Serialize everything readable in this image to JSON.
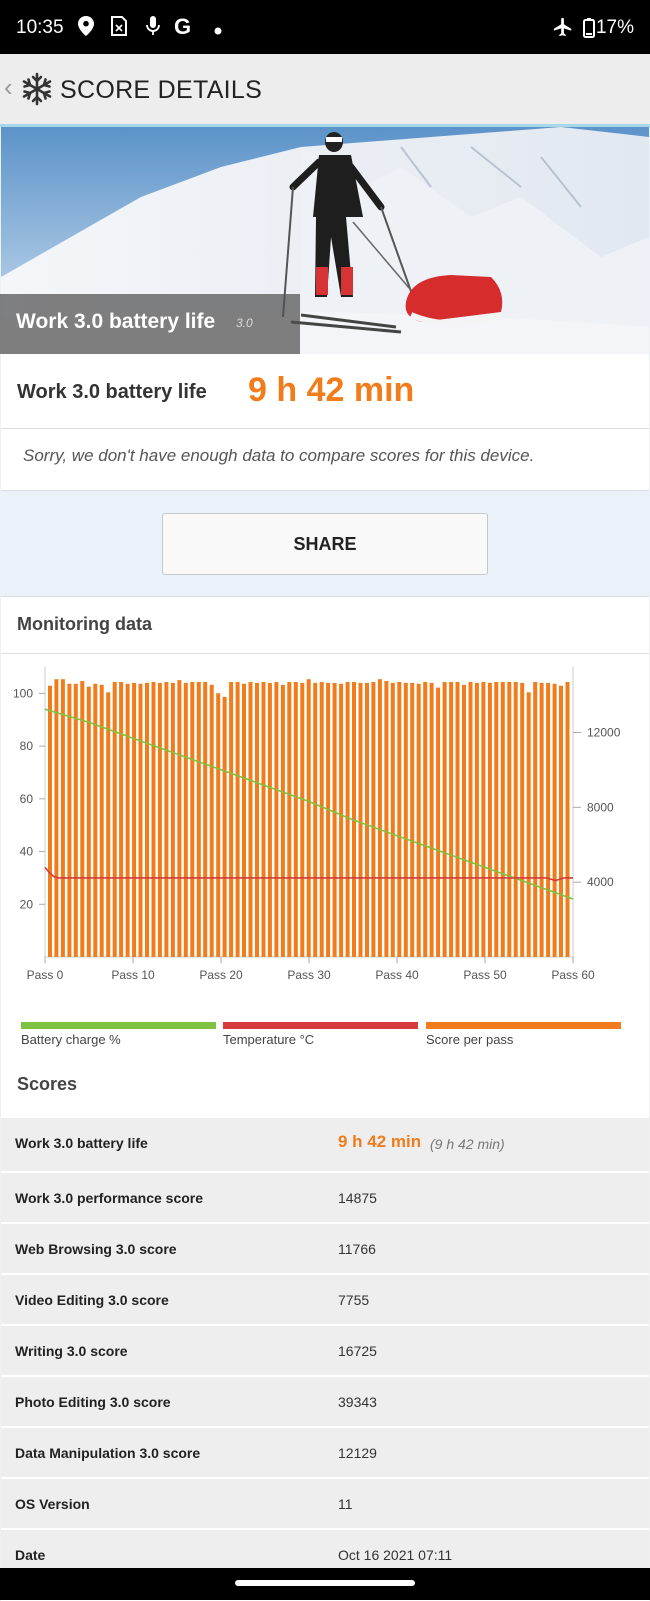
{
  "status_bar": {
    "time": "10:35",
    "battery_percent": "17%",
    "icons": [
      "location-icon",
      "sim-icon",
      "mic-icon",
      "google-icon",
      "dot-icon",
      "airplane-icon",
      "battery-icon"
    ]
  },
  "app_bar": {
    "title": "SCORE DETAILS",
    "back_icon": "back-chevron-icon",
    "logo_icon": "snowflake-icon"
  },
  "hero": {
    "caption": "Work 3.0 battery life",
    "version": "3.0"
  },
  "result": {
    "label": "Work 3.0 battery life",
    "value": "9 h 42 min",
    "message": "Sorry, we don't have enough data to compare scores for this device."
  },
  "share_label": "SHARE",
  "monitoring": {
    "title": "Monitoring data"
  },
  "chart_data": {
    "type": "bar",
    "title": "",
    "x_ticks": [
      "Pass 0",
      "Pass 10",
      "Pass 20",
      "Pass 30",
      "Pass 40",
      "Pass 50",
      "Pass 60"
    ],
    "left_axis": {
      "range": [
        0,
        110
      ],
      "ticks": [
        20,
        40,
        60,
        80,
        100
      ]
    },
    "right_axis": {
      "range": [
        0,
        15500
      ],
      "ticks": [
        4000,
        8000,
        12000
      ]
    },
    "grid": false,
    "legend_position": "bottom",
    "colors": {
      "battery": "#7dc242",
      "temperature": "#d63a3a",
      "score": "#f07c1b"
    },
    "series": [
      {
        "name": "Score per pass",
        "axis": "right",
        "kind": "bar",
        "values": [
          14500,
          14850,
          14850,
          14600,
          14600,
          14750,
          14450,
          14600,
          14550,
          14150,
          14700,
          14700,
          14600,
          14650,
          14600,
          14650,
          14700,
          14650,
          14700,
          14650,
          14800,
          14650,
          14700,
          14700,
          14700,
          14550,
          14100,
          13900,
          14700,
          14700,
          14600,
          14700,
          14650,
          14700,
          14650,
          14700,
          14550,
          14700,
          14700,
          14650,
          14850,
          14650,
          14700,
          14650,
          14650,
          14600,
          14700,
          14700,
          14650,
          14650,
          14700,
          14850,
          14750,
          14650,
          14700,
          14650,
          14650,
          14600,
          14700,
          14650,
          14400,
          14700,
          14700,
          14700,
          14550,
          14700,
          14650,
          14700,
          14650,
          14700,
          14700,
          14700,
          14700,
          14650,
          14150,
          14700,
          14650,
          14650,
          14600,
          14500,
          14700
        ]
      },
      {
        "name": "Battery charge %",
        "axis": "left",
        "kind": "line",
        "x": [
          0,
          5,
          10,
          15,
          20,
          25,
          30,
          35,
          40,
          45,
          50,
          55,
          60
        ],
        "values": [
          94,
          89,
          83,
          77,
          71,
          65,
          59,
          52,
          46,
          40,
          34,
          28,
          22
        ]
      },
      {
        "name": "Temperature °C",
        "axis": "left",
        "kind": "line",
        "x": [
          0,
          0.5,
          1,
          1.5,
          2,
          10,
          20,
          30,
          40,
          50,
          57,
          58,
          59,
          60
        ],
        "values": [
          34,
          32,
          30.5,
          30,
          30,
          30,
          30,
          30,
          30,
          30,
          30,
          29,
          30,
          30
        ]
      }
    ]
  },
  "legend": {
    "battery": "Battery charge %",
    "temperature": "Temperature °C",
    "score": "Score per pass"
  },
  "scores": {
    "title": "Scores",
    "first_label": "Work 3.0 battery life",
    "first_value": "9 h 42 min",
    "first_sub": "(9 h 42 min)",
    "rows": [
      {
        "label": "Work 3.0 performance score",
        "value": "14875"
      },
      {
        "label": "Web Browsing 3.0 score",
        "value": "11766"
      },
      {
        "label": "Video Editing 3.0 score",
        "value": "7755"
      },
      {
        "label": "Writing 3.0 score",
        "value": "16725"
      },
      {
        "label": "Photo Editing 3.0 score",
        "value": "39343"
      },
      {
        "label": "Data Manipulation 3.0 score",
        "value": "12129"
      },
      {
        "label": "OS Version",
        "value": "11"
      },
      {
        "label": "Date",
        "value": "Oct 16 2021 07:11"
      }
    ]
  }
}
